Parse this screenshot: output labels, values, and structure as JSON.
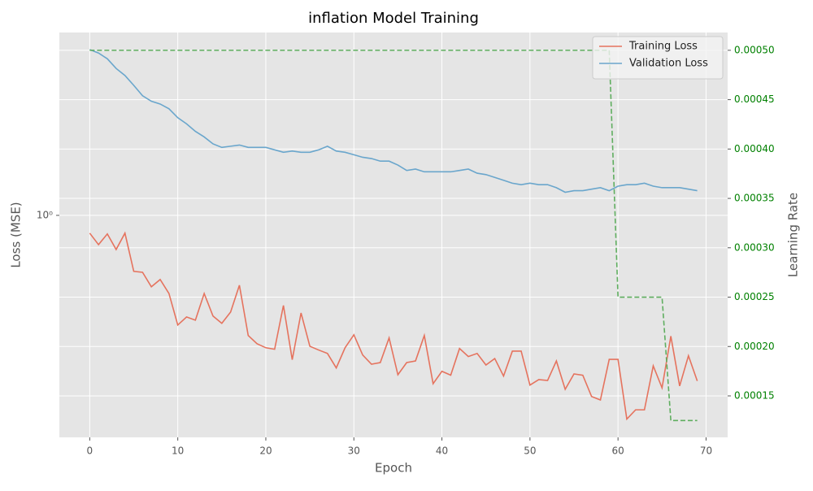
{
  "chart_data": {
    "type": "line",
    "title": "inflation Model Training",
    "x_label": "Epoch",
    "y_label": "Loss (MSE)",
    "y2_label": "Learning Rate",
    "x": [
      0,
      1,
      2,
      3,
      4,
      5,
      6,
      7,
      8,
      9,
      10,
      11,
      12,
      13,
      14,
      15,
      16,
      17,
      18,
      19,
      20,
      21,
      22,
      23,
      24,
      25,
      26,
      27,
      28,
      29,
      30,
      31,
      32,
      33,
      34,
      35,
      36,
      37,
      38,
      39,
      40,
      41,
      42,
      43,
      44,
      45,
      46,
      47,
      48,
      49,
      50,
      51,
      52,
      53,
      54,
      55,
      56,
      57,
      58,
      59,
      60,
      61,
      62,
      63,
      64,
      65,
      66,
      67,
      68,
      69
    ],
    "xlim": [
      -3.45,
      72.45
    ],
    "xticks": [
      0,
      10,
      20,
      30,
      40,
      50,
      60,
      70
    ],
    "ylim": [
      0.284,
      2.82
    ],
    "yscale": "log",
    "yticks": [
      {
        "value": 1,
        "label": "10⁰"
      }
    ],
    "y2lim": [
      0.000108,
      0.000518
    ],
    "y2ticks": [
      {
        "value": 0.00015,
        "label": "0.00015"
      },
      {
        "value": 0.0002,
        "label": "0.00020"
      },
      {
        "value": 0.00025,
        "label": "0.00025"
      },
      {
        "value": 0.0003,
        "label": "0.00030"
      },
      {
        "value": 0.00035,
        "label": "0.00035"
      },
      {
        "value": 0.0004,
        "label": "0.00040"
      },
      {
        "value": 0.00045,
        "label": "0.00045"
      },
      {
        "value": 0.0005,
        "label": "0.00050"
      }
    ],
    "y2_tick_color": "#008000",
    "grid": true,
    "legend": "upper right",
    "series": [
      {
        "name": "Training Loss",
        "color": "#e5735e",
        "values": [
          0.904,
          0.847,
          0.9,
          0.824,
          0.904,
          0.728,
          0.724,
          0.667,
          0.695,
          0.642,
          0.537,
          0.562,
          0.552,
          0.642,
          0.565,
          0.542,
          0.578,
          0.673,
          0.506,
          0.483,
          0.472,
          0.468,
          0.6,
          0.441,
          0.575,
          0.476,
          0.466,
          0.457,
          0.421,
          0.472,
          0.508,
          0.453,
          0.43,
          0.434,
          0.499,
          0.405,
          0.434,
          0.438,
          0.506,
          0.385,
          0.413,
          0.404,
          0.47,
          0.449,
          0.457,
          0.428,
          0.444,
          0.402,
          0.463,
          0.463,
          0.382,
          0.394,
          0.392,
          0.438,
          0.373,
          0.407,
          0.404,
          0.358,
          0.351,
          0.442,
          0.442,
          0.315,
          0.332,
          0.332,
          0.426,
          0.376,
          0.504,
          0.38,
          0.451,
          0.391
        ]
      },
      {
        "name": "Validation Loss",
        "color": "#6aa6cc",
        "values": [
          2.56,
          2.51,
          2.43,
          2.3,
          2.21,
          2.09,
          1.97,
          1.91,
          1.88,
          1.83,
          1.74,
          1.68,
          1.61,
          1.56,
          1.5,
          1.47,
          1.48,
          1.49,
          1.47,
          1.47,
          1.47,
          1.45,
          1.43,
          1.44,
          1.43,
          1.43,
          1.45,
          1.48,
          1.44,
          1.43,
          1.41,
          1.39,
          1.38,
          1.36,
          1.36,
          1.33,
          1.29,
          1.3,
          1.28,
          1.28,
          1.28,
          1.28,
          1.29,
          1.3,
          1.27,
          1.26,
          1.24,
          1.22,
          1.2,
          1.19,
          1.2,
          1.19,
          1.19,
          1.17,
          1.14,
          1.15,
          1.15,
          1.16,
          1.17,
          1.15,
          1.18,
          1.19,
          1.19,
          1.2,
          1.18,
          1.17,
          1.17,
          1.17,
          1.16,
          1.15
        ]
      },
      {
        "color": "#5fae5f",
        "axis": "y2",
        "linestyle": "dashed",
        "values": [
          0.0005,
          0.0005,
          0.0005,
          0.0005,
          0.0005,
          0.0005,
          0.0005,
          0.0005,
          0.0005,
          0.0005,
          0.0005,
          0.0005,
          0.0005,
          0.0005,
          0.0005,
          0.0005,
          0.0005,
          0.0005,
          0.0005,
          0.0005,
          0.0005,
          0.0005,
          0.0005,
          0.0005,
          0.0005,
          0.0005,
          0.0005,
          0.0005,
          0.0005,
          0.0005,
          0.0005,
          0.0005,
          0.0005,
          0.0005,
          0.0005,
          0.0005,
          0.0005,
          0.0005,
          0.0005,
          0.0005,
          0.0005,
          0.0005,
          0.0005,
          0.0005,
          0.0005,
          0.0005,
          0.0005,
          0.0005,
          0.0005,
          0.0005,
          0.0005,
          0.0005,
          0.0005,
          0.0005,
          0.0005,
          0.0005,
          0.0005,
          0.0005,
          0.0005,
          0.0005,
          0.00025,
          0.00025,
          0.00025,
          0.00025,
          0.00025,
          0.00025,
          0.000125,
          0.000125,
          0.000125,
          0.000125
        ]
      }
    ]
  }
}
